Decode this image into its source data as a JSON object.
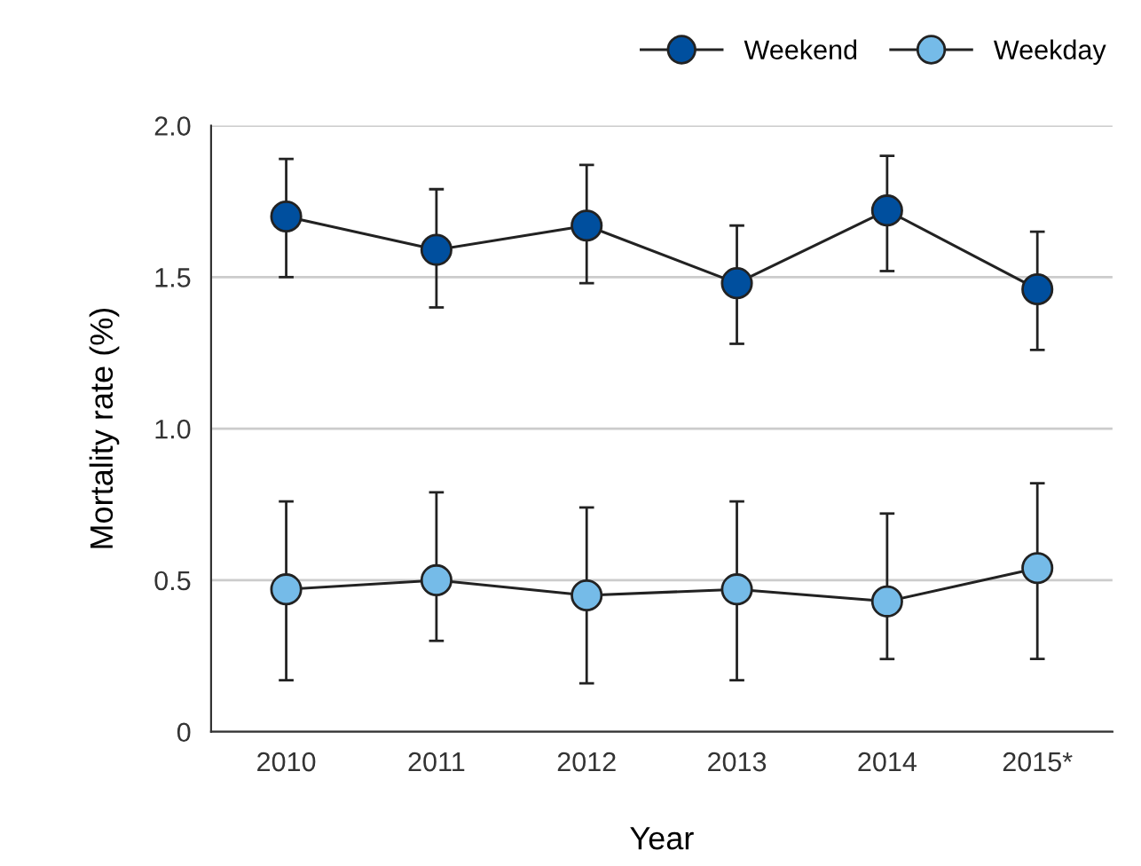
{
  "chart_data": {
    "type": "line",
    "xlabel": "Year",
    "ylabel": "Mortality rate (%)",
    "categories": [
      "2010",
      "2011",
      "2012",
      "2013",
      "2014",
      "2015*"
    ],
    "series": [
      {
        "name": "Weekend",
        "color": "#004f9e",
        "values": [
          1.7,
          1.59,
          1.67,
          1.48,
          1.72,
          1.46
        ],
        "errors": [
          [
            1.5,
            1.89
          ],
          [
            1.4,
            1.79
          ],
          [
            1.48,
            1.87
          ],
          [
            1.28,
            1.67
          ],
          [
            1.52,
            1.9
          ],
          [
            1.26,
            1.65
          ]
        ]
      },
      {
        "name": "Weekday",
        "color": "#75bbe8",
        "values": [
          0.47,
          0.5,
          0.45,
          0.47,
          0.43,
          0.54
        ],
        "errors": [
          [
            0.17,
            0.76
          ],
          [
            0.3,
            0.79
          ],
          [
            0.16,
            0.74
          ],
          [
            0.17,
            0.76
          ],
          [
            0.24,
            0.72
          ],
          [
            0.24,
            0.82
          ]
        ]
      }
    ],
    "ylim": [
      0,
      2.0
    ],
    "yticks": [
      0,
      0.5,
      {
        "value": 1,
        "label": "1.0"
      },
      1.5,
      {
        "value": 2,
        "label": "2.0"
      }
    ],
    "grid": "y",
    "legend": "top right",
    "marker": "circle",
    "line_style": "solid"
  }
}
